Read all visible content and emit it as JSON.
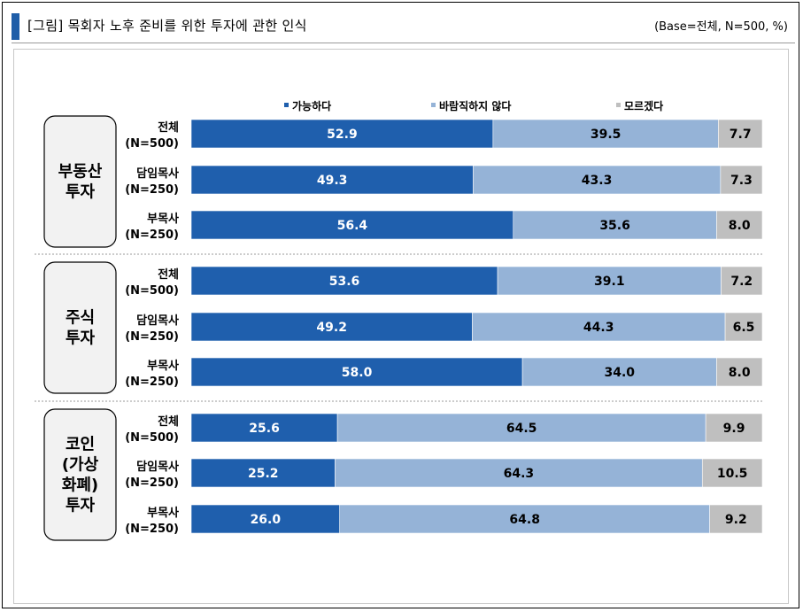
{
  "header": {
    "title": "[그림] 목회자 노후 준비를 위한 투자에 관한 인식",
    "base_note": "(Base=전체, N=500, %)"
  },
  "chart_data": {
    "type": "bar",
    "orientation": "horizontal",
    "stacked": true,
    "percent_total": 100,
    "legend_position": "top",
    "series": [
      {
        "name": "가능하다",
        "color": "#1f5fad"
      },
      {
        "name": "바람직하지 않다",
        "color": "#95b3d7"
      },
      {
        "name": "모르겠다",
        "color": "#bfbfbf"
      }
    ],
    "groups": [
      {
        "label_lines": [
          "부동산",
          "투자"
        ],
        "rows": [
          {
            "label": "전체",
            "n": "(N=500)",
            "values": [
              52.9,
              39.5,
              7.7
            ],
            "display": [
              "52.9",
              "39.5",
              "7.7"
            ]
          },
          {
            "label": "담임목사",
            "n": "(N=250)",
            "values": [
              49.3,
              43.3,
              7.3
            ],
            "display": [
              "49.3",
              "43.3",
              "7.3"
            ]
          },
          {
            "label": "부목사",
            "n": "(N=250)",
            "values": [
              56.4,
              35.6,
              8.0
            ],
            "display": [
              "56.4",
              "35.6",
              "8.0"
            ]
          }
        ]
      },
      {
        "label_lines": [
          "주식",
          "투자"
        ],
        "rows": [
          {
            "label": "전체",
            "n": "(N=500)",
            "values": [
              53.6,
              39.1,
              7.2
            ],
            "display": [
              "53.6",
              "39.1",
              "7.2"
            ]
          },
          {
            "label": "담임목사",
            "n": "(N=250)",
            "values": [
              49.2,
              44.3,
              6.5
            ],
            "display": [
              "49.2",
              "44.3",
              "6.5"
            ]
          },
          {
            "label": "부목사",
            "n": "(N=250)",
            "values": [
              58.0,
              34.0,
              8.0
            ],
            "display": [
              "58.0",
              "34.0",
              "8.0"
            ]
          }
        ]
      },
      {
        "label_lines": [
          "코인",
          "(가상",
          "화폐)",
          "투자"
        ],
        "rows": [
          {
            "label": "전체",
            "n": "(N=500)",
            "values": [
              25.6,
              64.5,
              9.9
            ],
            "display": [
              "25.6",
              "64.5",
              "9.9"
            ]
          },
          {
            "label": "담임목사",
            "n": "(N=250)",
            "values": [
              25.2,
              64.3,
              10.5
            ],
            "display": [
              "25.2",
              "64.3",
              "10.5"
            ]
          },
          {
            "label": "부목사",
            "n": "(N=250)",
            "values": [
              26.0,
              64.8,
              9.2
            ],
            "display": [
              "26.0",
              "64.8",
              "9.2"
            ]
          }
        ]
      }
    ]
  }
}
